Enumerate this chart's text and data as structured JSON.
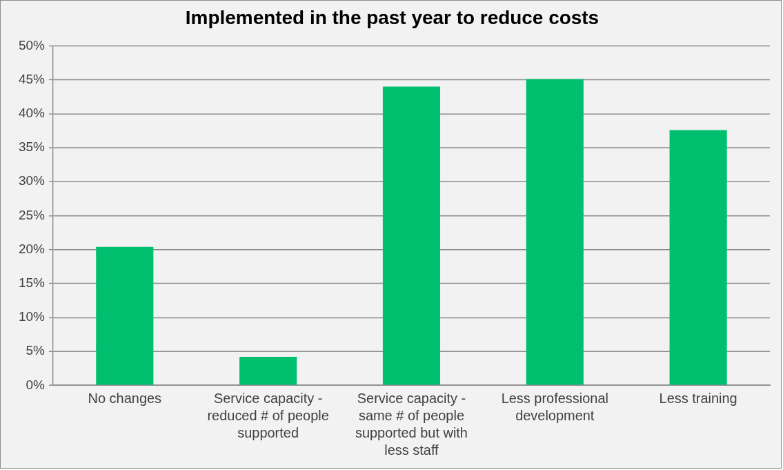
{
  "chart_data": {
    "type": "bar",
    "title": "Implemented in the past year to reduce costs",
    "categories": [
      "No changes",
      "Service capacity - reduced # of people supported",
      "Service capacity - same # of people supported but with less staff",
      "Less professional development",
      "Less training"
    ],
    "values": [
      20.4,
      4.2,
      44.0,
      45.1,
      37.6
    ],
    "color": "#00bf6f",
    "ylim": [
      0,
      50
    ],
    "yticks": [
      {
        "value": 0,
        "label": "0%"
      },
      {
        "value": 5,
        "label": "5%"
      },
      {
        "value": 10,
        "label": "10%"
      },
      {
        "value": 15,
        "label": "15%"
      },
      {
        "value": 20,
        "label": "20%"
      },
      {
        "value": 25,
        "label": "25%"
      },
      {
        "value": 30,
        "label": "30%"
      },
      {
        "value": 35,
        "label": "35%"
      },
      {
        "value": 40,
        "label": "40%"
      },
      {
        "value": 45,
        "label": "45%"
      },
      {
        "value": 50,
        "label": "50%"
      }
    ],
    "grid": "y"
  }
}
